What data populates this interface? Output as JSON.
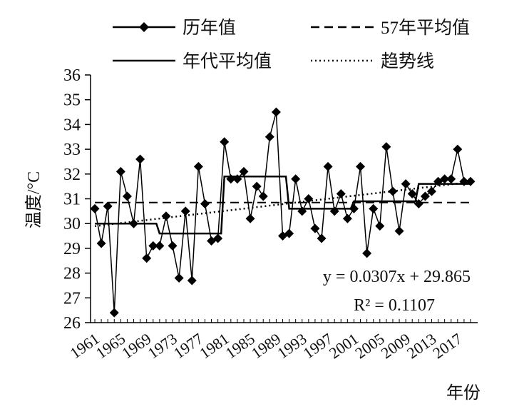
{
  "chart_data": {
    "type": "line",
    "title": "",
    "ylabel": "温度/°C",
    "xlabel": "年份",
    "ylim": [
      26,
      36
    ],
    "yticks": [
      26,
      27,
      28,
      29,
      30,
      31,
      32,
      33,
      34,
      35,
      36
    ],
    "xlim": [
      1961,
      2019
    ],
    "xticks": [
      "1961",
      "1965",
      "1969",
      "1973",
      "1977",
      "1981",
      "1985",
      "1989",
      "1993",
      "1997",
      "2001",
      "2005",
      "2009",
      "2013",
      "2017"
    ],
    "legend_position": "top",
    "grid": false,
    "series": [
      {
        "name": "历年值",
        "style": "line-diamond",
        "x": [
          1961,
          1962,
          1963,
          1964,
          1965,
          1966,
          1967,
          1968,
          1969,
          1970,
          1971,
          1972,
          1973,
          1974,
          1975,
          1976,
          1977,
          1978,
          1979,
          1980,
          1981,
          1982,
          1983,
          1984,
          1985,
          1986,
          1987,
          1988,
          1989,
          1990,
          1991,
          1992,
          1993,
          1994,
          1995,
          1996,
          1997,
          1998,
          1999,
          2000,
          2001,
          2002,
          2003,
          2004,
          2005,
          2006,
          2007,
          2008,
          2009,
          2010,
          2011,
          2012,
          2013,
          2014,
          2015,
          2016,
          2017,
          2018,
          2019
        ],
        "values": [
          30.6,
          29.2,
          30.7,
          26.4,
          32.1,
          31.1,
          30.0,
          32.6,
          28.6,
          29.1,
          29.1,
          30.3,
          29.1,
          27.8,
          30.5,
          27.7,
          32.3,
          30.8,
          29.3,
          29.4,
          33.3,
          31.8,
          31.8,
          32.1,
          30.2,
          31.5,
          31.1,
          33.5,
          34.5,
          29.5,
          29.6,
          31.8,
          30.5,
          31.0,
          29.8,
          29.4,
          32.3,
          30.5,
          31.2,
          30.2,
          30.6,
          32.3,
          28.8,
          30.6,
          29.9,
          33.1,
          31.3,
          29.7,
          31.6,
          31.2,
          30.8,
          31.1,
          31.3,
          31.7,
          31.8,
          31.8,
          33.0,
          31.7,
          31.7
        ]
      },
      {
        "name": "57年平均值",
        "style": "dashed",
        "x": [
          1961,
          2019
        ],
        "values": [
          30.85,
          30.85
        ]
      },
      {
        "name": "年代平均值",
        "style": "step",
        "segments": [
          {
            "x0": 1961,
            "x1": 1970,
            "value": 30.0
          },
          {
            "x0": 1971,
            "x1": 1980,
            "value": 29.6
          },
          {
            "x0": 1981,
            "x1": 1990,
            "value": 31.9
          },
          {
            "x0": 1991,
            "x1": 2000,
            "value": 30.6
          },
          {
            "x0": 2001,
            "x1": 2010,
            "value": 30.9
          },
          {
            "x0": 2011,
            "x1": 2019,
            "value": 31.6
          }
        ]
      },
      {
        "name": "趋势线",
        "style": "dotted",
        "slope": 0.0307,
        "intercept": 29.865
      }
    ],
    "annotations": [
      {
        "key": "equation",
        "text": "y = 0.0307x + 29.865"
      },
      {
        "key": "r2",
        "text": "R² = 0.1107"
      }
    ]
  }
}
